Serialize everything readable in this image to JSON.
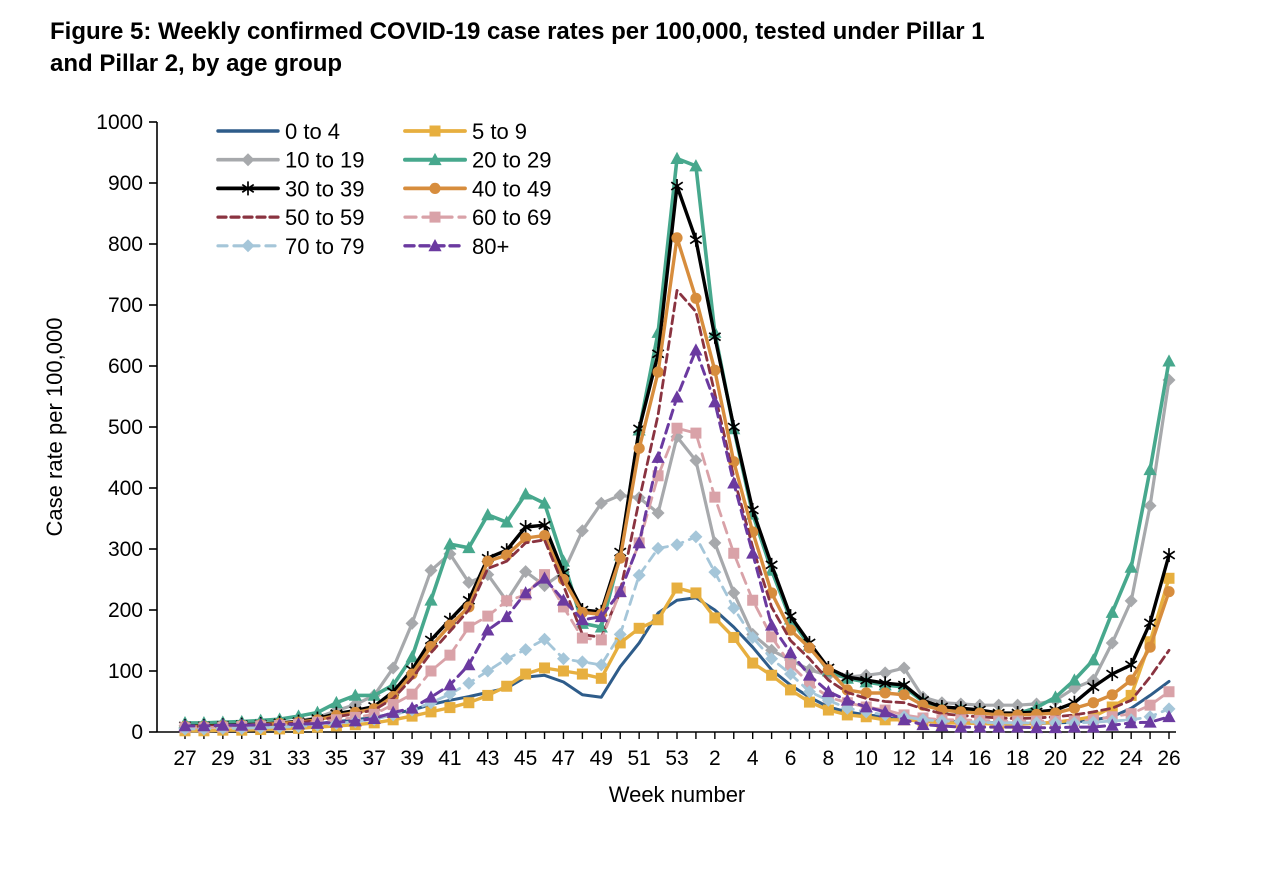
{
  "title": {
    "line1": "Figure 5: Weekly confirmed COVID-19 case rates per 100,000, tested under Pillar 1",
    "line2": "and Pillar 2, by age group"
  },
  "chart_data": {
    "type": "line",
    "title": "Figure 5: Weekly confirmed COVID-19 case rates per 100,000, tested under Pillar 1 and Pillar 2, by age group",
    "xlabel": "Week number",
    "ylabel": "Case rate per 100,000",
    "ylim": [
      0,
      1000
    ],
    "y_ticks": [
      0,
      100,
      200,
      300,
      400,
      500,
      600,
      700,
      800,
      900,
      1000
    ],
    "grid": "off",
    "legend_position": "top-left",
    "x_categories": [
      "27",
      "28",
      "29",
      "30",
      "31",
      "32",
      "33",
      "34",
      "35",
      "36",
      "37",
      "38",
      "39",
      "40",
      "41",
      "42",
      "43",
      "44",
      "45",
      "46",
      "47",
      "48",
      "49",
      "50",
      "51",
      "52",
      "53",
      "1",
      "2",
      "3",
      "4",
      "5",
      "6",
      "7",
      "8",
      "9",
      "10",
      "11",
      "12",
      "13",
      "14",
      "15",
      "16",
      "17",
      "18",
      "19",
      "20",
      "21",
      "22",
      "23",
      "24",
      "25",
      "26"
    ],
    "x_ticks_shown": [
      "27",
      "29",
      "31",
      "33",
      "35",
      "37",
      "39",
      "41",
      "43",
      "45",
      "47",
      "49",
      "51",
      "53",
      "2",
      "4",
      "6",
      "8",
      "10",
      "12",
      "14",
      "16",
      "18",
      "20",
      "22",
      "24",
      "26"
    ],
    "legend_columns": [
      [
        "0 to 4",
        "10 to 19",
        "30 to 39",
        "50 to 59",
        "70 to 79"
      ],
      [
        "5 to 9",
        "20 to 29",
        "40 to 49",
        "60 to 69",
        "80+"
      ]
    ],
    "series": [
      {
        "name": "0 to 4",
        "color": "#2e5c8a",
        "dash": "solid",
        "marker": "none",
        "width": 3,
        "values": [
          8,
          8,
          9,
          9,
          10,
          11,
          12,
          14,
          17,
          20,
          24,
          30,
          36,
          45,
          52,
          58,
          65,
          72,
          90,
          93,
          82,
          61,
          57,
          107,
          146,
          195,
          216,
          220,
          200,
          172,
          139,
          102,
          77,
          57,
          41,
          33,
          28,
          25,
          23,
          20,
          18,
          17,
          16,
          15,
          15,
          14,
          15,
          16,
          20,
          25,
          39,
          60,
          83
        ]
      },
      {
        "name": "5 to 9",
        "color": "#e7af3f",
        "dash": "solid",
        "marker": "square",
        "width": 3.4,
        "values": [
          2,
          2,
          3,
          3,
          4,
          5,
          6,
          8,
          10,
          12,
          15,
          20,
          26,
          33,
          40,
          48,
          60,
          75,
          95,
          105,
          100,
          95,
          88,
          146,
          170,
          184,
          236,
          228,
          187,
          155,
          113,
          93,
          69,
          49,
          36,
          28,
          25,
          20,
          20,
          18,
          15,
          15,
          14,
          13,
          13,
          14,
          16,
          20,
          25,
          41,
          60,
          148,
          252
        ]
      },
      {
        "name": "10 to 19",
        "color": "#a7a9ac",
        "dash": "solid",
        "marker": "diamond",
        "width": 3.2,
        "values": [
          10,
          10,
          11,
          12,
          13,
          15,
          18,
          24,
          35,
          45,
          60,
          105,
          178,
          265,
          292,
          245,
          258,
          215,
          263,
          240,
          262,
          330,
          375,
          388,
          384,
          359,
          484,
          445,
          310,
          228,
          160,
          134,
          118,
          102,
          93,
          90,
          93,
          97,
          105,
          57,
          48,
          46,
          44,
          44,
          44,
          46,
          52,
          72,
          85,
          146,
          215,
          371,
          577
        ]
      },
      {
        "name": "20 to 29",
        "color": "#47a88d",
        "dash": "solid",
        "marker": "triangle",
        "width": 3.6,
        "values": [
          15,
          15,
          16,
          17,
          19,
          21,
          26,
          32,
          48,
          60,
          60,
          77,
          123,
          216,
          308,
          302,
          356,
          344,
          390,
          375,
          280,
          178,
          172,
          290,
          495,
          655,
          940,
          928,
          655,
          497,
          357,
          265,
          185,
          142,
          100,
          88,
          82,
          77,
          74,
          50,
          40,
          38,
          35,
          31,
          30,
          40,
          57,
          85,
          118,
          196,
          270,
          430,
          608
        ]
      },
      {
        "name": "30 to 39",
        "color": "#000000",
        "dash": "solid",
        "marker": "star",
        "width": 3.4,
        "values": [
          10,
          10,
          11,
          12,
          13,
          15,
          17,
          22,
          30,
          35,
          42,
          66,
          102,
          151,
          184,
          216,
          285,
          298,
          336,
          339,
          261,
          200,
          197,
          295,
          497,
          620,
          895,
          807,
          648,
          500,
          364,
          274,
          190,
          146,
          105,
          90,
          85,
          80,
          77,
          52,
          41,
          39,
          36,
          31,
          31,
          33,
          36,
          48,
          74,
          95,
          110,
          179,
          290
        ]
      },
      {
        "name": "40 to 49",
        "color": "#d78d3d",
        "dash": "solid",
        "marker": "circle",
        "width": 3.4,
        "values": [
          9,
          9,
          10,
          11,
          12,
          14,
          16,
          20,
          27,
          32,
          38,
          58,
          95,
          140,
          175,
          205,
          280,
          290,
          318,
          322,
          250,
          196,
          193,
          285,
          465,
          590,
          810,
          711,
          593,
          443,
          328,
          228,
          167,
          138,
          102,
          69,
          64,
          64,
          61,
          44,
          36,
          33,
          31,
          28,
          28,
          29,
          31,
          39,
          48,
          61,
          85,
          139,
          230
        ]
      },
      {
        "name": "50 to 59",
        "color": "#8a3340",
        "dash": "dashed",
        "marker": "none",
        "width": 2.8,
        "values": [
          9,
          9,
          10,
          11,
          12,
          13,
          15,
          19,
          25,
          30,
          36,
          55,
          88,
          130,
          165,
          200,
          268,
          280,
          310,
          315,
          240,
          160,
          155,
          230,
          380,
          520,
          724,
          689,
          555,
          418,
          303,
          205,
          150,
          120,
          85,
          65,
          55,
          50,
          48,
          38,
          30,
          27,
          25,
          23,
          22,
          23,
          25,
          28,
          33,
          39,
          52,
          90,
          134
        ]
      },
      {
        "name": "60 to 69",
        "color": "#d9a2a8",
        "dash": "dashed",
        "marker": "square",
        "width": 2.8,
        "values": [
          7,
          7,
          8,
          9,
          10,
          11,
          13,
          16,
          20,
          24,
          29,
          45,
          62,
          100,
          126,
          172,
          190,
          215,
          225,
          258,
          205,
          154,
          151,
          230,
          310,
          420,
          498,
          490,
          385,
          293,
          216,
          156,
          110,
          80,
          57,
          48,
          41,
          36,
          28,
          23,
          20,
          20,
          19,
          18,
          18,
          18,
          18,
          18,
          20,
          25,
          30,
          44,
          66
        ]
      },
      {
        "name": "70 to 79",
        "color": "#a5c6d9",
        "dash": "dashed",
        "marker": "diamond",
        "width": 2.8,
        "values": [
          5,
          5,
          6,
          6,
          7,
          8,
          9,
          11,
          14,
          17,
          21,
          28,
          36,
          48,
          62,
          80,
          100,
          120,
          135,
          152,
          120,
          115,
          110,
          160,
          257,
          301,
          307,
          320,
          262,
          203,
          155,
          120,
          95,
          66,
          52,
          39,
          33,
          28,
          25,
          20,
          18,
          17,
          16,
          15,
          15,
          15,
          15,
          15,
          16,
          18,
          20,
          25,
          38
        ]
      },
      {
        "name": "80+",
        "color": "#6b3aa0",
        "dash": "dashed",
        "marker": "triangle",
        "width": 3,
        "values": [
          10,
          10,
          11,
          11,
          12,
          12,
          13,
          14,
          16,
          18,
          22,
          32,
          39,
          57,
          77,
          110,
          167,
          189,
          228,
          252,
          216,
          184,
          189,
          230,
          310,
          450,
          549,
          626,
          541,
          408,
          293,
          175,
          130,
          93,
          66,
          52,
          41,
          33,
          20,
          12,
          10,
          8,
          8,
          8,
          8,
          7,
          7,
          8,
          8,
          11,
          15,
          16,
          25
        ]
      }
    ]
  }
}
